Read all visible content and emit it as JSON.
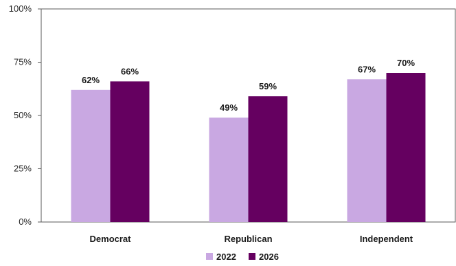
{
  "chart_data": {
    "type": "bar",
    "categories": [
      "Democrat",
      "Republican",
      "Independent"
    ],
    "series": [
      {
        "name": "2022",
        "values": [
          62,
          49,
          67
        ],
        "labels": [
          "62%",
          "49%",
          "67%"
        ],
        "color": "#c9a8e2"
      },
      {
        "name": "2026",
        "values": [
          66,
          59,
          70
        ],
        "labels": [
          "66%",
          "59%",
          "70%"
        ],
        "color": "#650060"
      }
    ],
    "yticks": [
      0,
      25,
      50,
      75,
      100
    ],
    "ytick_labels": [
      "0%",
      "25%",
      "50%",
      "75%",
      "100%"
    ],
    "ylim": [
      0,
      100
    ],
    "title": "",
    "xlabel": "",
    "ylabel": "",
    "grid": false,
    "legend_position": "bottom"
  }
}
